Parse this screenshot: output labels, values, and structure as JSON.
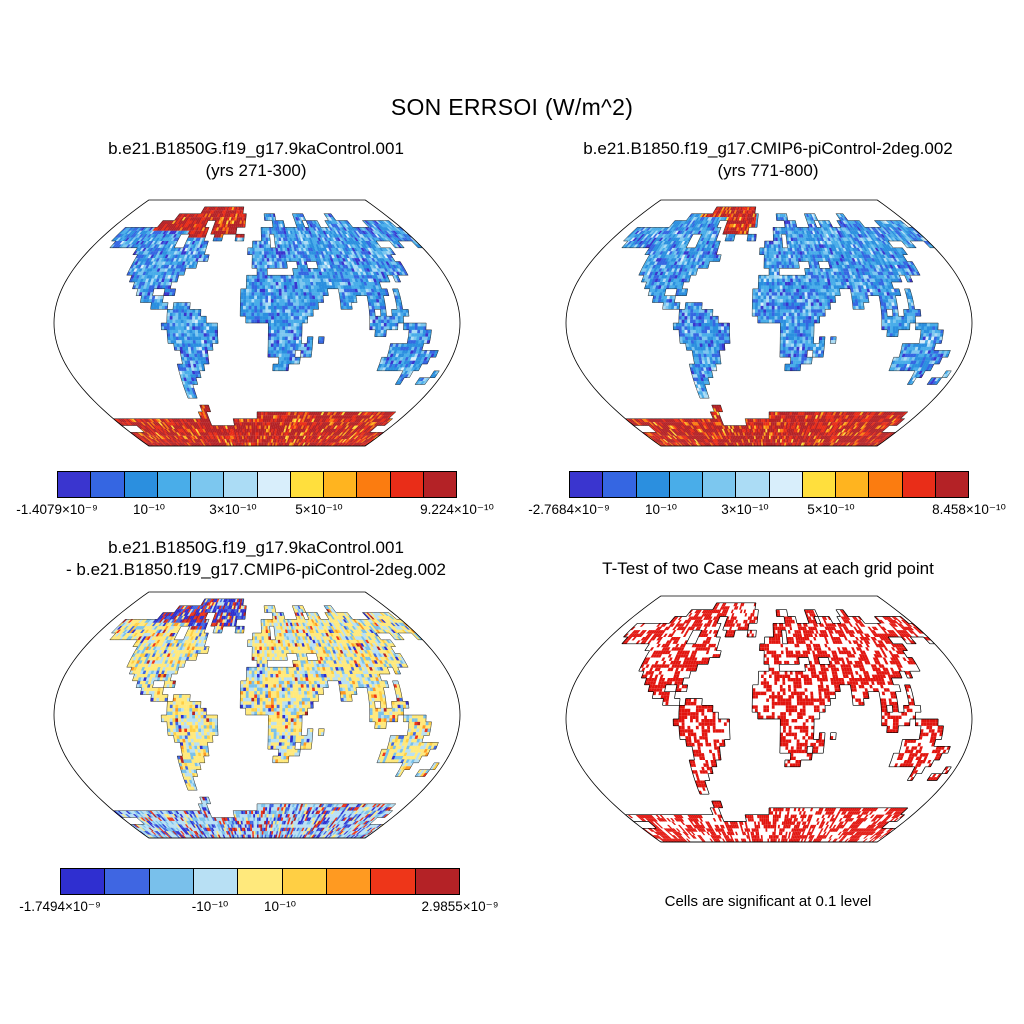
{
  "chart_data": {
    "type": "heatmap",
    "figure_title": "SON ERRSOI (W/m^2)",
    "variable": "ERRSOI",
    "season": "SON",
    "units": "W/m^2",
    "layout": "2x2 world-map panels, Robinson-like projection, white ocean, colored land cells",
    "panels": [
      {
        "title": "b.e21.B1850G.f19_g17.9kaControl.001",
        "subtitle": "(yrs 271-300)",
        "render": "case1",
        "value_min": -1.4079e-09,
        "value_max": 9.224e-10,
        "visual_summary": "Land mostly blue shades; Greenland and Canadian Arctic red; Antarctica dark red",
        "colorbar": {
          "palette": [
            "#3a35cf",
            "#3566e2",
            "#2b8fdf",
            "#49ade9",
            "#7cc7ef",
            "#abdcf5",
            "#d8eefb",
            "#ffdf3d",
            "#ffb41f",
            "#fb7c10",
            "#e92d18",
            "#b42226"
          ],
          "ticks": [
            {
              "label": "-1.4079×10⁻⁹",
              "pos": 0
            },
            {
              "label": "10⁻¹⁰",
              "pos": 0.23
            },
            {
              "label": "3×10⁻¹⁰",
              "pos": 0.44
            },
            {
              "label": "5×10⁻¹⁰",
              "pos": 0.655
            },
            {
              "label": "9.224×10⁻¹⁰",
              "pos": 1
            }
          ]
        }
      },
      {
        "title": "b.e21.B1850.f19_g17.CMIP6-piControl-2deg.002",
        "subtitle": "(yrs 771-800)",
        "render": "case2",
        "value_min": -2.7684e-09,
        "value_max": 8.458e-10,
        "visual_summary": "Land mostly blue shades; Greenland red; Antarctica dark red",
        "colorbar": {
          "palette": [
            "#3a35cf",
            "#3566e2",
            "#2b8fdf",
            "#49ade9",
            "#7cc7ef",
            "#abdcf5",
            "#d8eefb",
            "#ffdf3d",
            "#ffb41f",
            "#fb7c10",
            "#e92d18",
            "#b42226"
          ],
          "ticks": [
            {
              "label": "-2.7684×10⁻⁹",
              "pos": 0
            },
            {
              "label": "10⁻¹⁰",
              "pos": 0.23
            },
            {
              "label": "3×10⁻¹⁰",
              "pos": 0.44
            },
            {
              "label": "5×10⁻¹⁰",
              "pos": 0.655
            },
            {
              "label": "8.458×10⁻¹⁰",
              "pos": 1
            }
          ]
        }
      },
      {
        "title": "b.e21.B1850G.f19_g17.9kaControl.001",
        "subtitle": "- b.e21.B1850.f19_g17.CMIP6-piControl-2deg.002",
        "render": "diff",
        "value_min": -1.7494e-09,
        "value_max": 2.9855e-09,
        "visual_summary": "Difference map: land mottled pale yellow and light blue; Greenland/Arctic dark blue and red; Antarctica light blue with dark blue and red speckles",
        "colorbar": {
          "palette": [
            "#2f2fd0",
            "#3f66e2",
            "#79c0eb",
            "#b8e0f4",
            "#ffe97c",
            "#ffcf44",
            "#ff9a21",
            "#ee3619",
            "#b42226"
          ],
          "ticks": [
            {
              "label": "-1.7494×10⁻⁹",
              "pos": 0
            },
            {
              "label": "-10⁻¹⁰",
              "pos": 0.375
            },
            {
              "label": "10⁻¹⁰",
              "pos": 0.55
            },
            {
              "label": "2.9855×10⁻⁹",
              "pos": 1
            }
          ]
        }
      },
      {
        "title": "T-Test of two Case means at each grid point",
        "render": "ttest",
        "significant_color": "#e2150f",
        "caption": "Cells are significant at 0.1 level",
        "visual_summary": "Black coastlines on white; roughly half of land cells filled red in clumps marking significance"
      }
    ],
    "world_grid": {
      "cols": 72,
      "cell_degrees": 5,
      "rows": [
        "000000000000000000000000000000000000000000000000000000000000000000000000",
        "000000000000000000001111111111110000000000000000000000000000000000000000",
        "000000000000001111111111111111111000001110000011100000011000000000000000",
        "000000000001111111111110011111111000000011100011011100111111000011111110",
        "000111111111111111111111011111100000011111111111111111111111111111111111",
        "000111111111111111001111001100011000011011111111111111111111111111111111",
        "000011111111111111001111100000000001111011111111111111111111111000110001",
        "000000000011111111111111100000000011111111111111111111111111111110000000",
        "000000000001111111111111110000000001111111111111111111111111111100000000",
        "000000000001111111111111000000000001111111001100111111111111111110000000",
        "000000000001111111111100000000000000110000011111111111111111111110000000",
        "000000000000111111111000000000000011111111111111111111111111101000000000",
        "000000000000011111110000000000000011111111111111111111111110000000000000",
        "000000000000001110011000000000000111111111111111100111111111010000000000",
        "000000000000000111100000000000000111111111111111000111001110010000000000",
        "000000000000000001110111000000000111111111111110000110001110010000000000",
        "000000000000000000001111110000000111111111111100000000001010111000000000",
        "000000000000000000001111111000000011111111111000000000001111110000000000",
        "000000000000000000011111111110000000001111110000000000001111101111000000",
        "000000000000000000001111111110000000001111110000000000000110000111100000",
        "000000000000000000001111111110000000001111110101000000000000000111100000",
        "000000000000000000000111111100000000001111111100000000000000111111000000",
        "000000000000000000000011111000000000001111101100000000000000111111111000",
        "000000000000000000000011111000000000000011110000000000000001111111110000",
        "000000000000000000000111110000000000000111000000000000000001111111100000",
        "000000000000000000000111100000000000000000000000000000000000000011000010",
        "000000000000000000000111000000000000000000000000000000000000000010001100",
        "000000000000000000000110000000000000000000000000000000000000000000000000",
        "000000000000000000000110000000000000000000000000000000000000000000000000",
        "000000000000000000000000000000000000000000000000000000000000000000000000",
        "000000000000000000000001100000000000000000000000000000000000000000000000",
        "000000000000000000000011000000000000111111111111111111111111111111111000",
        "111111111111111111111111000000111111111111111111111111111111111111111100",
        "000011111111111111111111111111111111111111111111111111111111111111110000",
        "111111111111111111111111111111111111111111111111111111111111111111111111",
        "111111111111111111111111111111111111111111111111111111111111111111111111"
      ]
    }
  }
}
